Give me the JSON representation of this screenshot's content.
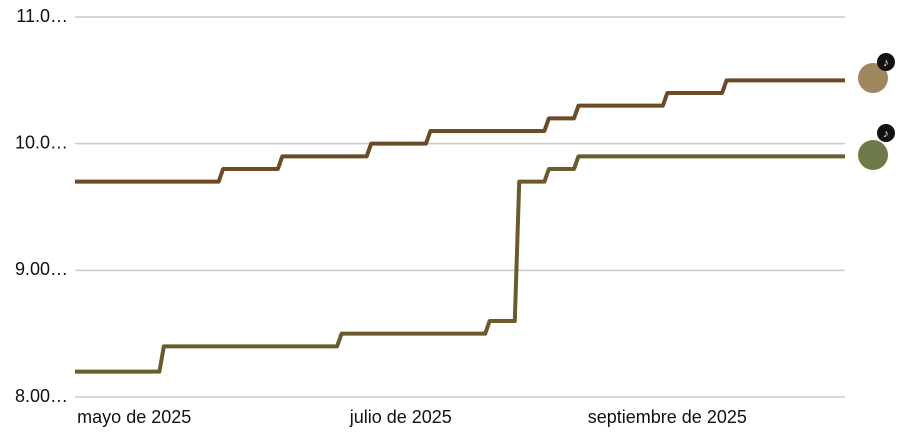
{
  "chart_data": {
    "type": "line",
    "categories": [
      null,
      null,
      "mayo de 2025",
      null,
      null,
      null,
      null,
      null,
      null,
      null,
      null,
      "julio de 2025",
      null,
      null,
      null,
      null,
      null,
      null,
      null,
      null,
      "septiembre de 2025",
      null,
      null,
      null,
      null,
      null,
      null
    ],
    "series": [
      {
        "color": "#6b4a25",
        "values": [
          9.7,
          9.7,
          9.7,
          9.7,
          9.7,
          9.8,
          9.8,
          9.9,
          9.9,
          9.9,
          10.0,
          10.0,
          10.1,
          10.1,
          10.1,
          10.1,
          10.2,
          10.3,
          10.3,
          10.3,
          10.4,
          10.4,
          10.5,
          10.5,
          10.5,
          10.5,
          10.5
        ]
      },
      {
        "color": "#6b5a2a",
        "values": [
          8.2,
          8.2,
          8.2,
          8.4,
          8.4,
          8.4,
          8.4,
          8.4,
          8.4,
          8.5,
          8.5,
          8.5,
          8.5,
          8.5,
          8.6,
          9.7,
          9.8,
          9.9,
          9.9,
          9.9,
          9.9,
          9.9,
          9.9,
          9.9,
          9.9,
          9.9,
          9.9
        ]
      }
    ],
    "ylim": [
      8,
      11
    ],
    "yticks": [
      {
        "value": 8,
        "label": "8.00…"
      },
      {
        "value": 9,
        "label": "9.00…"
      },
      {
        "value": 10,
        "label": "10.0…"
      },
      {
        "value": 11,
        "label": "11.0…"
      }
    ],
    "grid": true
  }
}
